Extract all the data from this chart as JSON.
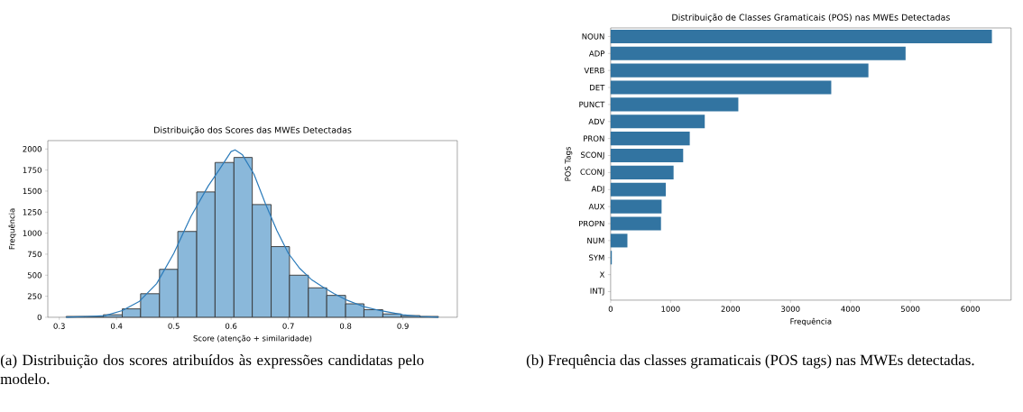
{
  "chart_data": [
    {
      "type": "histogram",
      "title": "Distribuição dos Scores das MWEs Detectadas",
      "xlabel": "Score (atenção + similaridade)",
      "ylabel": "Frequência",
      "series": [
        {
          "type": "histogram",
          "color": "#8ab8da",
          "bins": [
            0.312,
            0.345,
            0.377,
            0.41,
            0.442,
            0.475,
            0.507,
            0.54,
            0.572,
            0.605,
            0.637,
            0.67,
            0.702,
            0.735,
            0.767,
            0.8,
            0.832,
            0.865,
            0.897,
            0.93,
            0.962
          ],
          "values": [
            10,
            10,
            30,
            100,
            280,
            570,
            1020,
            1490,
            1840,
            1900,
            1340,
            840,
            500,
            350,
            260,
            160,
            90,
            40,
            20,
            10
          ]
        },
        {
          "type": "line",
          "color": "#2b7bba",
          "x": [
            0.312,
            0.35,
            0.38,
            0.41,
            0.44,
            0.47,
            0.5,
            0.53,
            0.56,
            0.58,
            0.6,
            0.607,
            0.62,
            0.64,
            0.66,
            0.68,
            0.7,
            0.72,
            0.74,
            0.76,
            0.78,
            0.8,
            0.83,
            0.86,
            0.9,
            0.93,
            0.962
          ],
          "values": [
            0,
            10,
            20,
            80,
            190,
            400,
            760,
            1200,
            1560,
            1760,
            1970,
            1990,
            1930,
            1700,
            1350,
            1030,
            760,
            580,
            450,
            360,
            280,
            210,
            130,
            80,
            30,
            10,
            0
          ]
        }
      ],
      "xlim": [
        0.28,
        0.995
      ],
      "xticks": [
        0.3,
        0.4,
        0.5,
        0.6,
        0.7,
        0.8,
        0.9
      ],
      "ylim": [
        0,
        2100
      ],
      "yticks": [
        0,
        250,
        500,
        750,
        1000,
        1250,
        1500,
        1750,
        2000
      ],
      "grid": false,
      "annotations": [
        "(a) Distribuição dos scores atribuídos às expressões candidatas pelo modelo."
      ]
    },
    {
      "type": "bar",
      "orientation": "horizontal",
      "title": "Distribuição de Classes Gramaticais (POS) nas MWEs Detectadas",
      "xlabel": "Frequência",
      "ylabel": "POS Tags",
      "categories": [
        "NOUN",
        "ADP",
        "VERB",
        "DET",
        "PUNCT",
        "ADV",
        "PRON",
        "SCONJ",
        "CCONJ",
        "ADJ",
        "AUX",
        "PROPN",
        "NUM",
        "SYM",
        "X",
        "INTJ"
      ],
      "values": [
        6360,
        4920,
        4300,
        3680,
        2130,
        1570,
        1320,
        1210,
        1050,
        920,
        850,
        840,
        280,
        20,
        0,
        0
      ],
      "color": "#3274a1",
      "xlim": [
        0,
        6680
      ],
      "xticks": [
        0,
        1000,
        2000,
        3000,
        4000,
        5000,
        6000
      ],
      "grid": false,
      "annotations": [
        "(b) Frequência das classes gramaticais (POS tags) nas MWEs detectadas."
      ]
    }
  ]
}
